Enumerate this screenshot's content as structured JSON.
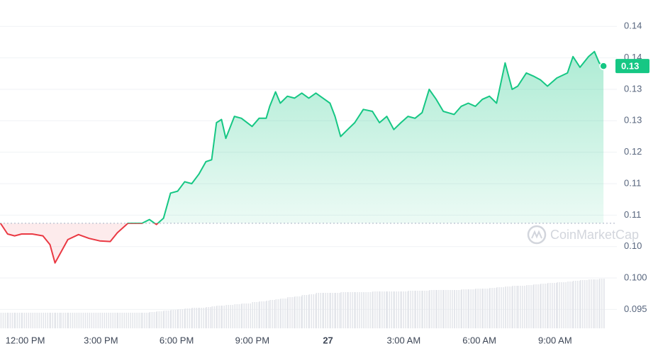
{
  "chart_data": {
    "type": "line",
    "x": [
      -0.98,
      -0.7,
      -0.42,
      -0.14,
      0.28,
      0.7,
      0.98,
      1.18,
      1.4,
      1.69,
      2.11,
      2.53,
      2.95,
      3.37,
      3.65,
      4.07,
      4.63,
      4.92,
      5.2,
      5.48,
      5.76,
      6.04,
      6.32,
      6.6,
      6.88,
      7.16,
      7.39,
      7.58,
      7.78,
      7.95,
      8.29,
      8.57,
      8.99,
      9.27,
      9.55,
      9.69,
      9.92,
      10.11,
      10.39,
      10.67,
      10.96,
      11.24,
      11.52,
      11.8,
      12.08,
      12.28,
      12.5,
      12.78,
      13.06,
      13.4,
      13.76,
      14.04,
      14.33,
      14.61,
      14.89,
      15.17,
      15.45,
      15.73,
      16.01,
      16.29,
      16.57,
      17.0,
      17.28,
      17.56,
      17.84,
      18.12,
      18.4,
      18.68,
      19.02,
      19.3,
      19.52,
      19.86,
      20.14,
      20.42,
      20.7,
      21.07,
      21.49,
      21.71,
      21.99,
      22.33,
      22.56,
      22.75,
      22.92
    ],
    "series": [
      {
        "name": "Price",
        "color": "#16c784",
        "below_color": "#ea3943",
        "values": [
          0.1087,
          0.107,
          0.1067,
          0.107,
          0.107,
          0.1067,
          0.1053,
          0.1024,
          0.104,
          0.1061,
          0.1069,
          0.1063,
          0.1059,
          0.1058,
          0.1072,
          0.1087,
          0.1087,
          0.1093,
          0.1085,
          0.1095,
          0.1135,
          0.1138,
          0.1153,
          0.115,
          0.1165,
          0.1185,
          0.1188,
          0.1247,
          0.1252,
          0.1222,
          0.1257,
          0.1254,
          0.1241,
          0.1254,
          0.1254,
          0.1273,
          0.1296,
          0.1278,
          0.1289,
          0.1286,
          0.1294,
          0.1286,
          0.1294,
          0.1286,
          0.1278,
          0.1257,
          0.1225,
          0.1236,
          0.1247,
          0.1268,
          0.1265,
          0.1247,
          0.1257,
          0.1236,
          0.1247,
          0.1257,
          0.1254,
          0.1263,
          0.13,
          0.1284,
          0.1265,
          0.126,
          0.1273,
          0.1278,
          0.1273,
          0.1284,
          0.1289,
          0.1278,
          0.1342,
          0.13,
          0.1305,
          0.1326,
          0.1321,
          0.1315,
          0.1305,
          0.1318,
          0.1326,
          0.1352,
          0.1335,
          0.1352,
          0.136,
          0.1342,
          0.1337
        ]
      },
      {
        "name": "Volume",
        "color": "#e3e5ea",
        "axis": "volume",
        "values": [
          22,
          22,
          22,
          22,
          22,
          22,
          22,
          22,
          22,
          22,
          22,
          22,
          22,
          22,
          22,
          22,
          22,
          23,
          24,
          25,
          26,
          27,
          28,
          29,
          29,
          30,
          31,
          32,
          32,
          33,
          34,
          35,
          37,
          38,
          39,
          40,
          41,
          42,
          44,
          45,
          47,
          48,
          50,
          50,
          50,
          50,
          51,
          51,
          51,
          51,
          52,
          52,
          52,
          52,
          52,
          53,
          53,
          53,
          54,
          54,
          54,
          54,
          55,
          55,
          56,
          56,
          57,
          58,
          59,
          60,
          60,
          61,
          62,
          63,
          64,
          65,
          66,
          67,
          68,
          69,
          69,
          70,
          70
        ]
      }
    ],
    "baseline": 0.1087,
    "current_price_label": "0.13",
    "watermark": "CoinMarketCap",
    "xlim": [
      -1,
      23.45
    ],
    "xticks": [
      {
        "value": 0,
        "label": "12:00 PM"
      },
      {
        "value": 3,
        "label": "3:00 PM"
      },
      {
        "value": 6,
        "label": "6:00 PM"
      },
      {
        "value": 9,
        "label": "9:00 PM"
      },
      {
        "value": 12,
        "label": "27"
      },
      {
        "value": 15,
        "label": "3:00 AM"
      },
      {
        "value": 18,
        "label": "6:00 AM"
      },
      {
        "value": 21,
        "label": "9:00 AM"
      }
    ],
    "ylim": [
      0.092,
      0.1442
    ],
    "yticks": [
      0.095,
      {
        "value": 0.1,
        "label": "0.100"
      },
      {
        "value": 0.105,
        "label": "0.10"
      },
      {
        "value": 0.11,
        "label": "0.11"
      },
      {
        "value": 0.115,
        "label": "0.11"
      },
      {
        "value": 0.12,
        "label": "0.12"
      },
      {
        "value": 0.125,
        "label": "0.13"
      },
      {
        "value": 0.13,
        "label": "0.13"
      },
      {
        "value": 0.135,
        "label": "0.14"
      },
      {
        "value": 0.14,
        "label": "0.14"
      }
    ],
    "vlim": [
      0,
      100
    ],
    "grid": true
  }
}
